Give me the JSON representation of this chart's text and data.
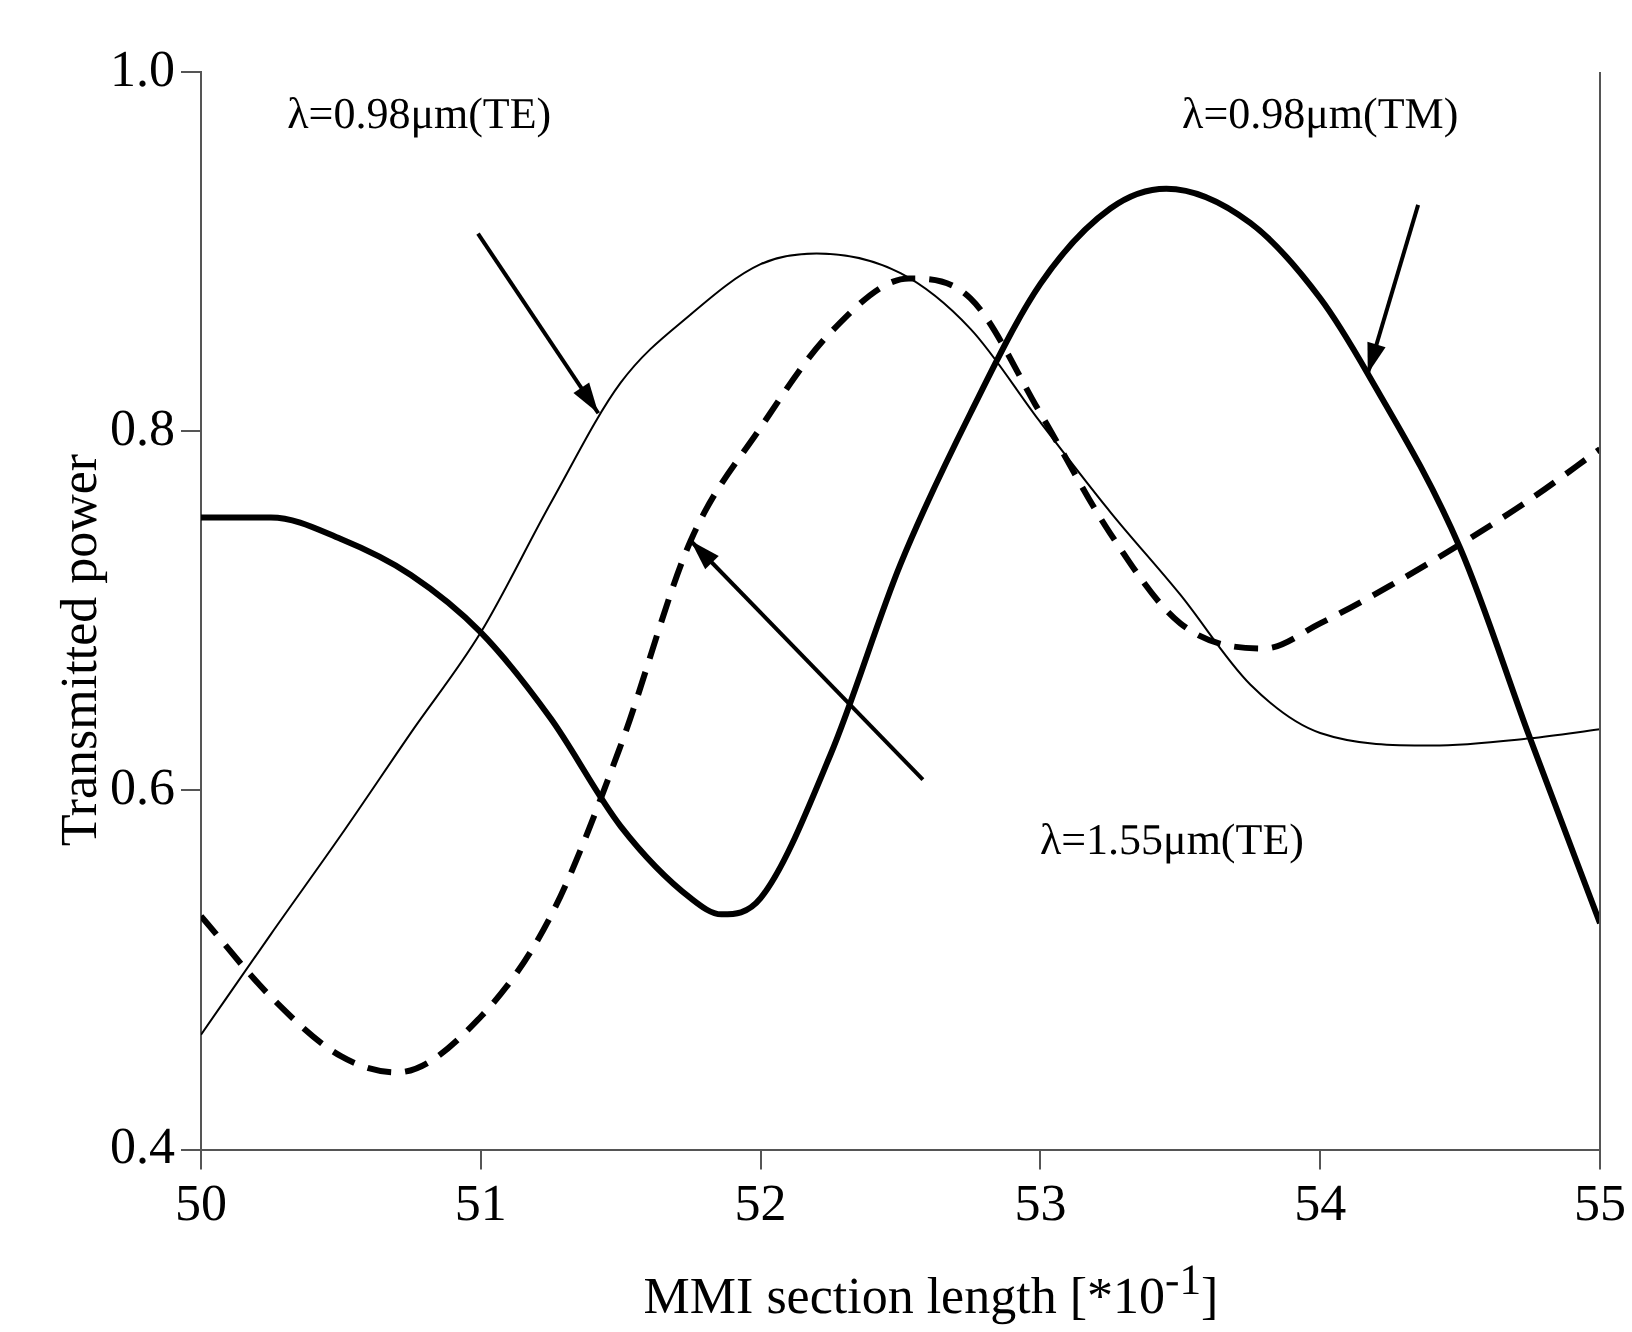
{
  "chart_data": {
    "type": "line",
    "xlabel": "MMI section length [*10$^{-1}$]",
    "ylabel": "Transmitted power",
    "xlim": [
      50,
      55
    ],
    "xticks": [
      50,
      51,
      52,
      53,
      54,
      55
    ],
    "ylim": [
      0.4,
      1.0
    ],
    "yticks": [
      0.4,
      0.6,
      0.8,
      {
        "value": 1.0,
        "label": "1.0"
      }
    ],
    "grid": false,
    "legend": false,
    "marker": "none",
    "series": [
      {
        "color": "#000000",
        "line_style": "solid",
        "x": [
          50,
          50.25,
          50.5,
          50.75,
          51,
          51.25,
          51.5,
          51.75,
          52,
          52.2,
          52.5,
          52.75,
          53,
          53.25,
          53.5,
          53.75,
          54,
          54.4,
          54.75,
          55
        ],
        "values": [
          0.464,
          0.52,
          0.575,
          0.632,
          0.688,
          0.76,
          0.827,
          0.865,
          0.893,
          0.899,
          0.888,
          0.857,
          0.805,
          0.755,
          0.709,
          0.659,
          0.632,
          0.625,
          0.629,
          0.634
        ]
      },
      {
        "color": "#000000",
        "line_style": "dashed",
        "x": [
          50,
          50.25,
          50.5,
          50.7,
          51,
          51.25,
          51.5,
          51.75,
          52,
          52.25,
          52.53,
          52.75,
          53,
          53.25,
          53.5,
          53.8,
          54,
          54.25,
          54.5,
          54.75,
          55
        ],
        "values": [
          0.53,
          0.485,
          0.452,
          0.443,
          0.474,
          0.53,
          0.625,
          0.739,
          0.802,
          0.855,
          0.885,
          0.874,
          0.81,
          0.743,
          0.693,
          0.679,
          0.693,
          0.714,
          0.737,
          0.762,
          0.79
        ]
      },
      {
        "color": "#000000",
        "line_style": "solid",
        "x": [
          50,
          50.25,
          50.5,
          50.75,
          51,
          51.25,
          51.5,
          51.75,
          51.86,
          52,
          52.25,
          52.5,
          52.75,
          53,
          53.25,
          53.45,
          53.75,
          54,
          54.17,
          54.5,
          54.75,
          55
        ],
        "values": [
          0.752,
          0.752,
          0.74,
          0.72,
          0.688,
          0.64,
          0.58,
          0.54,
          0.531,
          0.54,
          0.62,
          0.726,
          0.81,
          0.882,
          0.924,
          0.935,
          0.916,
          0.874,
          0.832,
          0.735,
          0.629,
          0.526
        ]
      }
    ],
    "annotations": [
      "λ=0.98μm(TE)",
      "λ=0.98μm(TM)",
      "λ=1.55μm(TE)"
    ]
  }
}
